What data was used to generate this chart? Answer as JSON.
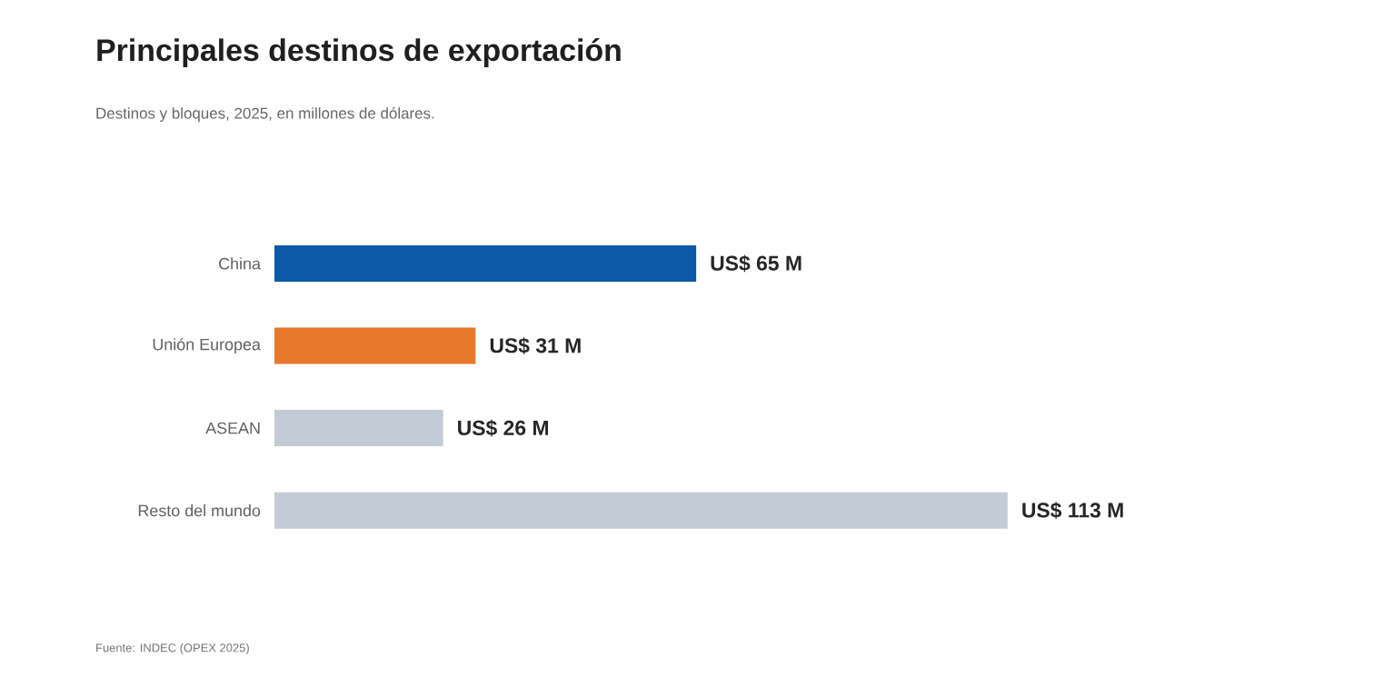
{
  "chart_data": {
    "type": "bar",
    "orientation": "horizontal",
    "title": "Principales destinos de exportación",
    "subtitle": "Destinos y bloques, 2025, en millones de dólares.",
    "annotations": [
      "Fuente: INDEC (OPEX 2025)"
    ],
    "categories": [
      "China",
      "Unión Europea",
      "ASEAN",
      "Resto del mundo"
    ],
    "values": [
      65,
      31,
      26,
      113
    ],
    "colors": [
      "#0b5aa8",
      "#e8782c",
      "#c3cbd6",
      "#c3cbd6"
    ],
    "value_labels": [
      "US$ 65 M",
      "US$ 31 M",
      "US$ 26 M",
      "US$ 113 M"
    ]
  }
}
